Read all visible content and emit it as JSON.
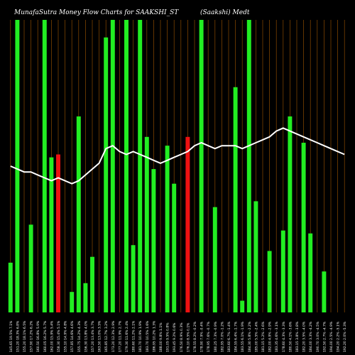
{
  "title": "MunafaSutra  Money Flow  Charts for SAAKSHI_ST",
  "subtitle": "(Saakshi) Medt",
  "colors": {
    "background": "#000000",
    "up_bar": "#22ee22",
    "down_bar": "#ee1111",
    "grid": "#8b4a00",
    "line": "#ffffff",
    "text": "#ffffff"
  },
  "chart_data": {
    "type": "bar",
    "title": "MunafaSutra  Money Flow  Charts for SAAKSHI_ST",
    "subtitle": "(Saakshi) Medt",
    "ylim": [
      0,
      100
    ],
    "grid": true,
    "categories": [
      "145.65 19.5% 7.1%",
      "151.20 18.3% 6.8%",
      "155.20 18.1% 6.5%",
      "157.90 17.2% 6.2%",
      "160.50 16.8% 5.9%",
      "160.05 16.2% 5.7%",
      "162.00 15.9% 5.4%",
      "158.30 15.4% 5.1%",
      "155.10 14.9% 4.8%",
      "157.85 14.6% 4.6%",
      "155.75 14.2% 4.3%",
      "156.30 13.8% 4.0%",
      "157.20 13.4% 3.7%",
      "163.50 13.0% 3.5%",
      "165.85 12.7% 3.2%",
      "173.20 12.3% 2.9%",
      "177.20 11.9% 2.7%",
      "179.30 11.6% 2.4%",
      "180.60 11.2% 2.1%",
      "181.70 10.9% 1.9%",
      "183.70 10.5% 1.6%",
      "186.95 10.2% 1.3%",
      "188.00 9.8% 1.1%",
      "191.05 9.5% 0.8%",
      "193.45 9.2% 0.6%",
      "176.50 8.9% 0.3%",
      "176.10 8.5% 0.1%",
      "178.55 8.2% -0.2%",
      "178.90 7.9% -0.4%",
      "178.95 7.6% -0.7%",
      "180.25 7.3% -0.9%",
      "182.95 7.0% -1.2%",
      "183.60 6.7% -1.4%",
      "184.55 6.4% -1.7%",
      "183.55 6.1% -1.9%",
      "184.30 5.8% -2.2%",
      "185.00 5.5% -2.4%",
      "181.15 5.2% -2.6%",
      "182.00 4.9% -2.9%",
      "183.35 4.6% -3.1%",
      "178.60 4.3% -3.3%",
      "180.50 4.1% -3.6%",
      "183.15 3.8% -3.8%",
      "182.20 3.5% -4.0%",
      "184.00 3.3% -4.2%",
      "190.70 3.0% -4.5%",
      "192.50 2.7% -4.7%",
      "194.00 2.5% -4.9%",
      "194.20 2.2% -5.1%",
      "192.20 2.0% -5.3%"
    ],
    "series": [
      {
        "values": [
          17,
          100,
          0,
          30,
          0,
          100,
          53,
          0,
          0,
          7,
          67,
          10,
          19,
          0,
          94,
          100,
          0,
          100,
          23,
          100,
          60,
          49,
          0,
          57,
          44,
          0,
          0,
          0,
          100,
          0,
          36,
          0,
          0,
          77,
          4,
          100,
          38,
          0,
          21,
          0,
          28,
          67,
          0,
          58,
          27,
          0,
          14,
          0,
          0,
          0
        ],
        "color": "#22ee22"
      },
      {
        "values": [
          0,
          0,
          0,
          0,
          0,
          0,
          0,
          54,
          0,
          0,
          0,
          0,
          0,
          0,
          0,
          0,
          0,
          0,
          0,
          0,
          0,
          0,
          0,
          0,
          0,
          0,
          60,
          0,
          0,
          0,
          0,
          0,
          0,
          0,
          0,
          0,
          0,
          0,
          0,
          0,
          0,
          0,
          0,
          0,
          0,
          0,
          0,
          0,
          0,
          0
        ],
        "color": "#ee1111"
      },
      {
        "values": [
          50,
          49,
          48,
          48,
          47,
          46,
          45,
          46,
          45,
          44,
          45,
          47,
          49,
          51,
          56,
          57,
          55,
          54,
          55,
          54,
          53,
          52,
          51,
          52,
          53,
          54,
          55,
          57,
          58,
          57,
          56,
          57,
          57,
          57,
          56,
          57,
          58,
          59,
          60,
          62,
          63,
          62,
          61,
          60,
          59,
          58,
          57,
          56,
          55,
          54
        ],
        "color": "#ffffff"
      }
    ]
  }
}
